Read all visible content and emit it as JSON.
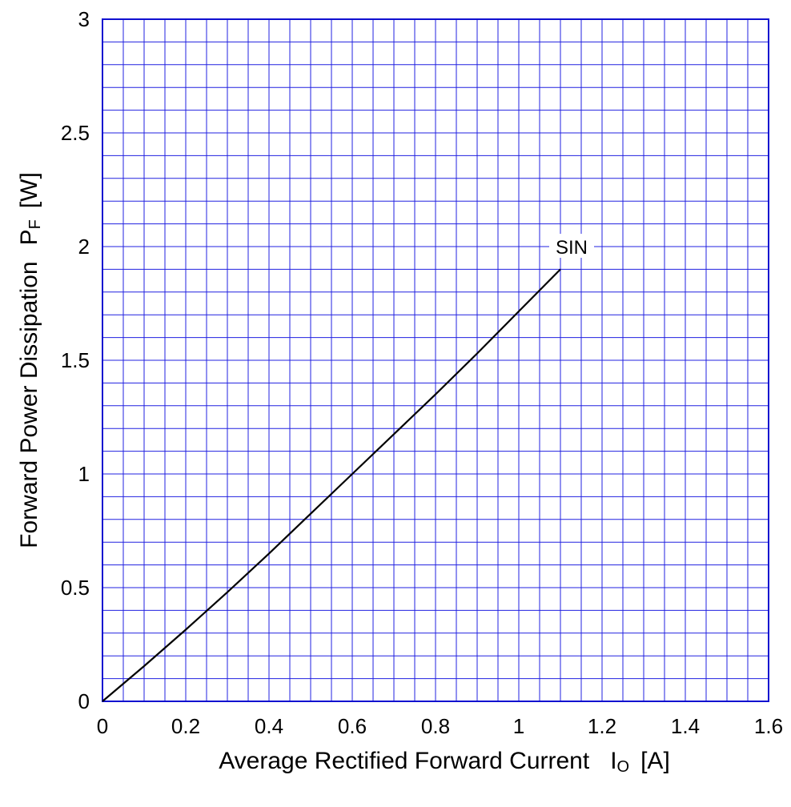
{
  "chart_data": {
    "type": "line",
    "xlabel": "Average Rectified Forward Current",
    "xlabel_symbol": "I",
    "xlabel_subscript": "O",
    "xlabel_unit": "[A]",
    "ylabel": "Forward Power Dissipation",
    "ylabel_symbol": "P",
    "ylabel_subscript": "F",
    "ylabel_unit": "[W]",
    "xlim": [
      0,
      1.6
    ],
    "ylim": [
      0,
      3
    ],
    "x_ticks": [
      "0",
      "0.2",
      "0.4",
      "0.6",
      "0.8",
      "1",
      "1.2",
      "1.4",
      "1.6"
    ],
    "y_ticks": [
      "0",
      "0.5",
      "1",
      "1.5",
      "2",
      "2.5",
      "3"
    ],
    "grid": true,
    "minor_grid": true,
    "grid_color": "#2020e0",
    "frame_color": "#1010d0",
    "line_color": "#000000",
    "series": [
      {
        "label": "SIN",
        "x": [
          0,
          0.1,
          0.2,
          0.3,
          0.4,
          0.5,
          0.6,
          0.7,
          0.8,
          0.9,
          1.0,
          1.1
        ],
        "y": [
          0,
          0.155,
          0.315,
          0.48,
          0.65,
          0.825,
          1.0,
          1.175,
          1.35,
          1.53,
          1.715,
          1.9
        ]
      }
    ],
    "annotations": [
      {
        "text": "SIN",
        "x": 1.1,
        "y": 2.0
      }
    ]
  }
}
